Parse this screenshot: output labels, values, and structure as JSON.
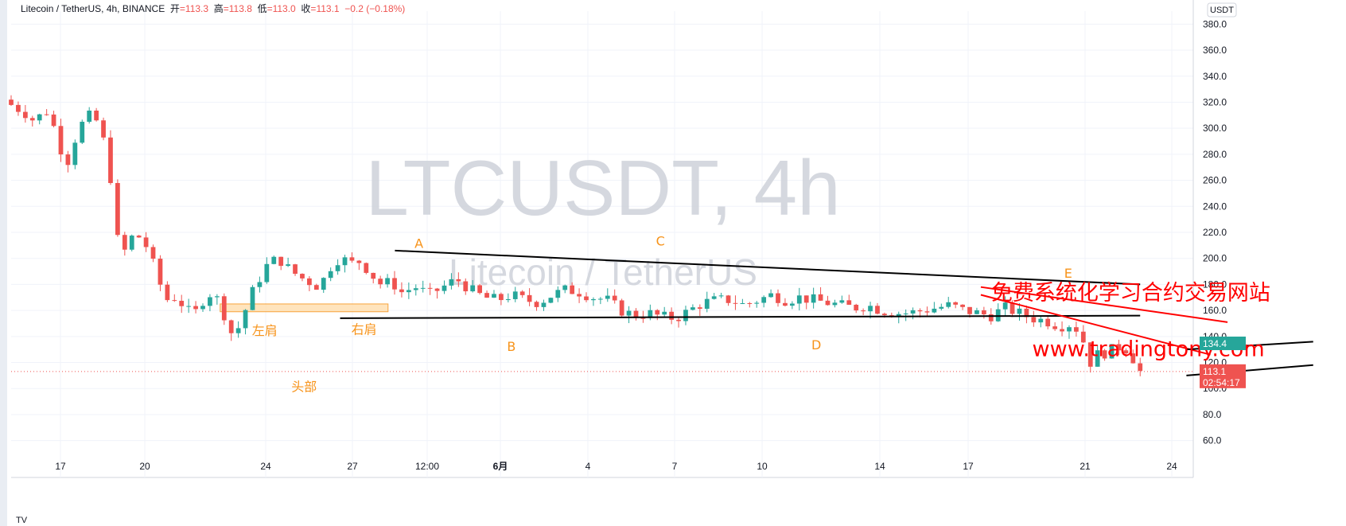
{
  "header": {
    "symbol_line": "Litecoin / TetherUS, 4h, BINANCE",
    "open_label": "开",
    "open": "113.3",
    "high_label": "高",
    "high": "113.8",
    "low_label": "低",
    "low": "113.0",
    "close_label": "收",
    "close": "113.1",
    "change": "−0.2 (−0.18%)"
  },
  "footer_logo": "TV",
  "colors": {
    "up": "#26a69a",
    "down": "#ef5350",
    "annotation": "#f7931a",
    "watermark": "#d1d4dc",
    "trendline": "#000000",
    "channel": "#ff0000"
  },
  "chart_data": {
    "type": "candlestick",
    "watermark_title": "LTCUSDT, 4h",
    "watermark_subtitle": "Litecoin / TetherUS",
    "currency_button": "USDT",
    "y_axis": {
      "min": 50,
      "max": 390,
      "ticks": [
        "380.0",
        "360.0",
        "340.0",
        "320.0",
        "300.0",
        "280.0",
        "260.0",
        "240.0",
        "220.0",
        "200.0",
        "180.0",
        "160.0",
        "140.0",
        "120.0",
        "100.0",
        "80.0",
        "60.0"
      ]
    },
    "x_ticks": [
      "17",
      "20",
      "24",
      "27",
      "12:00",
      "6月",
      "4",
      "7",
      "10",
      "14",
      "17",
      "21",
      "24"
    ],
    "price_tags": [
      {
        "value": 134.4,
        "label": "134.4",
        "color": "#26a69a"
      },
      {
        "value": 113.1,
        "label": "113.1",
        "sublabel": "02:54:17",
        "color": "#ef5350"
      }
    ],
    "current_price_line": 113.1,
    "close_path": [
      [
        0,
        318
      ],
      [
        8,
        312
      ],
      [
        14,
        305
      ],
      [
        20,
        315
      ],
      [
        26,
        298
      ],
      [
        32,
        270
      ],
      [
        36,
        288
      ],
      [
        42,
        305
      ],
      [
        48,
        312
      ],
      [
        54,
        290
      ],
      [
        58,
        262
      ],
      [
        62,
        215
      ],
      [
        66,
        205
      ],
      [
        72,
        220
      ],
      [
        78,
        212
      ],
      [
        84,
        192
      ],
      [
        90,
        168
      ],
      [
        96,
        170
      ],
      [
        102,
        162
      ],
      [
        106,
        155
      ],
      [
        112,
        168
      ],
      [
        118,
        175
      ],
      [
        124,
        158
      ],
      [
        130,
        138
      ],
      [
        136,
        158
      ],
      [
        142,
        178
      ],
      [
        150,
        196
      ],
      [
        156,
        200
      ],
      [
        162,
        192
      ],
      [
        168,
        186
      ],
      [
        174,
        182
      ],
      [
        180,
        178
      ],
      [
        186,
        193
      ],
      [
        192,
        201
      ],
      [
        198,
        196
      ],
      [
        204,
        198
      ],
      [
        210,
        188
      ],
      [
        216,
        180
      ],
      [
        222,
        182
      ],
      [
        228,
        174
      ],
      [
        236,
        178
      ],
      [
        244,
        172
      ],
      [
        252,
        178
      ],
      [
        260,
        184
      ],
      [
        268,
        176
      ],
      [
        276,
        170
      ],
      [
        284,
        168
      ],
      [
        292,
        172
      ],
      [
        300,
        168
      ],
      [
        308,
        166
      ],
      [
        316,
        172
      ],
      [
        324,
        176
      ],
      [
        332,
        174
      ],
      [
        340,
        170
      ],
      [
        348,
        168
      ],
      [
        356,
        160
      ],
      [
        364,
        156
      ],
      [
        372,
        158
      ],
      [
        380,
        155
      ],
      [
        388,
        154
      ],
      [
        396,
        160
      ],
      [
        404,
        166
      ],
      [
        412,
        168
      ],
      [
        420,
        168
      ],
      [
        428,
        164
      ],
      [
        436,
        168
      ],
      [
        444,
        172
      ],
      [
        452,
        168
      ],
      [
        460,
        170
      ],
      [
        468,
        168
      ],
      [
        476,
        166
      ],
      [
        484,
        164
      ],
      [
        492,
        162
      ],
      [
        500,
        164
      ],
      [
        508,
        160
      ],
      [
        516,
        158
      ],
      [
        524,
        158
      ],
      [
        532,
        160
      ],
      [
        540,
        162
      ],
      [
        548,
        164
      ],
      [
        556,
        160
      ],
      [
        564,
        158
      ],
      [
        572,
        156
      ],
      [
        580,
        162
      ],
      [
        588,
        158
      ],
      [
        596,
        154
      ],
      [
        604,
        152
      ],
      [
        612,
        148
      ],
      [
        620,
        150
      ],
      [
        626,
        136
      ],
      [
        630,
        120
      ],
      [
        634,
        126
      ],
      [
        640,
        128
      ],
      [
        646,
        132
      ],
      [
        652,
        130
      ],
      [
        659,
        113
      ]
    ],
    "candle_bars": 160,
    "annotations": [
      {
        "text": "A",
        "bar": 238,
        "price": 208
      },
      {
        "text": "B",
        "bar": 292,
        "price": 129
      },
      {
        "text": "C",
        "bar": 379,
        "price": 210
      },
      {
        "text": "D",
        "bar": 470,
        "price": 130
      },
      {
        "text": "E",
        "bar": 617,
        "price": 185
      },
      {
        "text": "左肩",
        "bar": 148,
        "price": 141
      },
      {
        "text": "右肩",
        "bar": 206,
        "price": 142
      },
      {
        "text": "头部",
        "bar": 171,
        "price": 98
      }
    ],
    "overlay_text": [
      {
        "text": "免费系统化学习合约交易网站",
        "bar": 572,
        "price": 168,
        "color": "#ff0000"
      },
      {
        "text": "www.tradingtony.com",
        "bar": 596,
        "price": 125,
        "color": "#ff0000"
      }
    ],
    "trendlines": [
      {
        "from": [
          224,
          206
        ],
        "to": [
          659,
          180
        ],
        "color": "#000000"
      },
      {
        "from": [
          192,
          154
        ],
        "to": [
          659,
          156
        ],
        "color": "#000000"
      },
      {
        "from": [
          566,
          178
        ],
        "to": [
          710,
          151
        ],
        "color": "#ff0000"
      },
      {
        "from": [
          566,
          172
        ],
        "to": [
          700,
          126
        ],
        "color": "#ff0000"
      },
      {
        "from": [
          686,
          130
        ],
        "to": [
          760,
          136
        ],
        "color": "#000000"
      },
      {
        "from": [
          686,
          110
        ],
        "to": [
          760,
          118
        ],
        "color": "#000000"
      }
    ],
    "neckline_box": {
      "from_bar": 122,
      "to_bar": 220,
      "low": 159,
      "high": 165
    }
  }
}
